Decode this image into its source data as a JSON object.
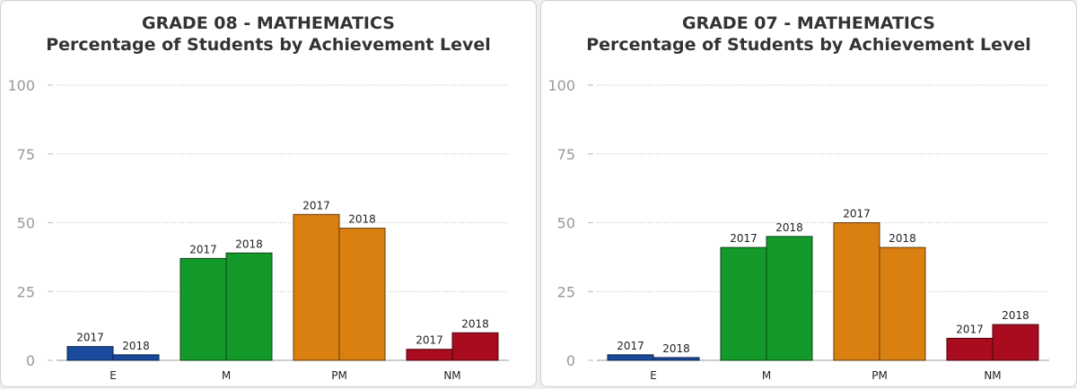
{
  "chart_data": [
    {
      "type": "bar",
      "title": "GRADE 08 - MATHEMATICS",
      "subtitle": "Percentage of Students by Achievement Level",
      "categories": [
        "E",
        "M",
        "PM",
        "NM"
      ],
      "series": [
        {
          "name": "2017",
          "values": [
            5,
            37,
            53,
            4
          ]
        },
        {
          "name": "2018",
          "values": [
            2,
            39,
            48,
            10
          ]
        }
      ],
      "category_colors": [
        "#1a4a9c",
        "#149a2a",
        "#d98010",
        "#a80c1e"
      ],
      "ylim": [
        0,
        100
      ],
      "yticks": [
        0,
        25,
        50,
        75,
        100
      ],
      "grid": true,
      "legend": "none"
    },
    {
      "type": "bar",
      "title": "GRADE 07 - MATHEMATICS",
      "subtitle": "Percentage of Students by Achievement Level",
      "categories": [
        "E",
        "M",
        "PM",
        "NM"
      ],
      "series": [
        {
          "name": "2017",
          "values": [
            2,
            41,
            50,
            8
          ]
        },
        {
          "name": "2018",
          "values": [
            1,
            45,
            41,
            13
          ]
        }
      ],
      "category_colors": [
        "#1a4a9c",
        "#149a2a",
        "#d98010",
        "#a80c1e"
      ],
      "ylim": [
        0,
        100
      ],
      "yticks": [
        0,
        25,
        50,
        75,
        100
      ],
      "grid": true,
      "legend": "none"
    }
  ]
}
